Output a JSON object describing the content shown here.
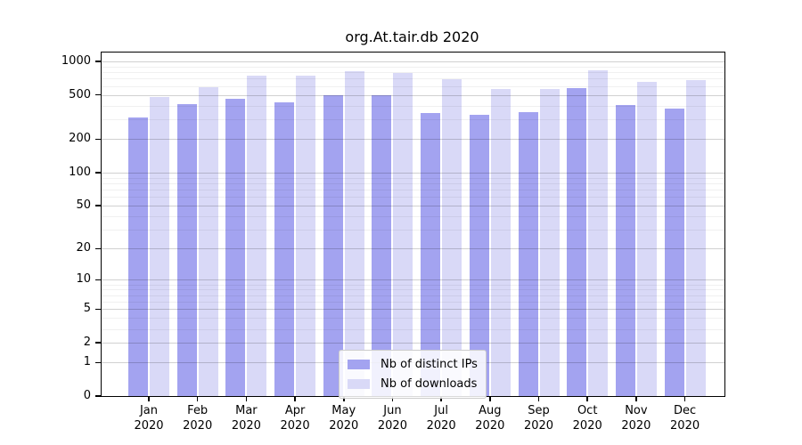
{
  "chart_data": {
    "type": "bar",
    "title": "org.At.tair.db 2020",
    "categories": [
      "Jan",
      "Feb",
      "Mar",
      "Apr",
      "May",
      "Jun",
      "Jul",
      "Aug",
      "Sep",
      "Oct",
      "Nov",
      "Dec"
    ],
    "year_label": "2020",
    "series": [
      {
        "name": "Nb of distinct IPs",
        "key": "distinct-ips",
        "color": "#a3a3f0",
        "values": [
          315,
          410,
          465,
          430,
          495,
          500,
          345,
          330,
          350,
          580,
          405,
          375
        ]
      },
      {
        "name": "Nb of downloads",
        "key": "downloads",
        "color": "#d9d9f7",
        "values": [
          475,
          590,
          745,
          740,
          820,
          785,
          690,
          565,
          570,
          835,
          660,
          675
        ]
      }
    ],
    "y_axis": {
      "scale": "log(value+1)",
      "range": [
        0,
        1000
      ],
      "tick_values": [
        1000,
        500,
        200,
        100,
        50,
        20,
        10,
        5,
        2,
        1,
        0
      ],
      "tick_labels": [
        "1000",
        "500",
        "200",
        "100",
        "50",
        "20",
        "10",
        "5",
        "2",
        "1",
        "0"
      ],
      "minor_gridline_values": [
        3,
        4,
        6,
        7,
        8,
        9,
        30,
        40,
        60,
        70,
        80,
        90,
        300,
        400,
        600,
        700,
        800,
        900
      ]
    },
    "legend": {
      "position": "bottom-center"
    },
    "grid": true
  },
  "colors": {
    "background": "#ffffff",
    "spine": "#000000",
    "text": "#000000",
    "grid_major": "rgba(0,0,0,0.18)",
    "grid_minor": "rgba(0,0,0,0.06)",
    "legend_border": "#cccccc",
    "legend_background": "rgba(255,255,255,0.85)"
  }
}
